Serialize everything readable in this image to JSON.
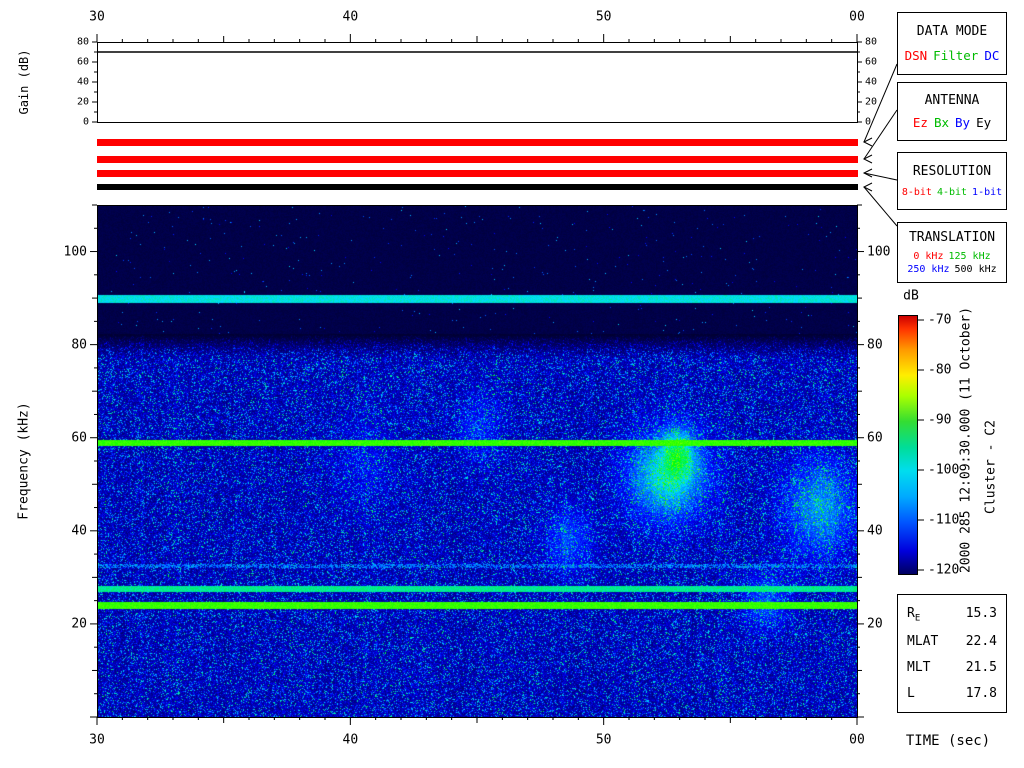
{
  "labels": {
    "gain_ylabel": "Gain (dB)",
    "freq_ylabel": "Frequency (kHz)",
    "time_xlabel": "TIME (sec)",
    "colorbar_title": "dB",
    "side_datetime": "2000 285 12:09:30.000 (11 October)",
    "side_spacecraft": "Cluster - C2"
  },
  "legend_boxes": [
    {
      "title": "DATA MODE",
      "items": [
        {
          "label": "DSN",
          "color": "#ff0000"
        },
        {
          "label": "Filter",
          "color": "#00bb00"
        },
        {
          "label": "DC",
          "color": "#0000ff"
        }
      ]
    },
    {
      "title": "ANTENNA",
      "items": [
        {
          "label": "Ez",
          "color": "#ff0000"
        },
        {
          "label": "Bx",
          "color": "#00bb00"
        },
        {
          "label": "By",
          "color": "#0000ff"
        },
        {
          "label": "Ey",
          "color": "#000000"
        }
      ]
    },
    {
      "title": "RESOLUTION",
      "items": [
        {
          "label": "8-bit",
          "color": "#ff0000"
        },
        {
          "label": "4-bit",
          "color": "#00bb00"
        },
        {
          "label": "1-bit",
          "color": "#0000ff"
        }
      ]
    },
    {
      "title": "TRANSLATION",
      "items": [
        {
          "label": "0 kHz",
          "color": "#ff0000"
        },
        {
          "label": "125 kHz",
          "color": "#00bb00"
        },
        {
          "label": "250 kHz",
          "color": "#0000ff"
        },
        {
          "label": "500 kHz",
          "color": "#000000"
        }
      ]
    }
  ],
  "colorbar": {
    "unit": "dB",
    "max_db": -70,
    "min_db": -120,
    "ticks": [
      "-70",
      "-80",
      "-90",
      "-100",
      "-110",
      "-120"
    ]
  },
  "ephemeris": {
    "rows": [
      {
        "label": "R",
        "sub": "E",
        "value": "15.3"
      },
      {
        "label": "MLAT",
        "sub": "",
        "value": "22.4"
      },
      {
        "label": "MLT",
        "sub": "",
        "value": "21.5"
      },
      {
        "label": "L",
        "sub": "",
        "value": "17.8"
      }
    ]
  },
  "chart_data": {
    "type": "heatmap",
    "title": "Cluster - C2 wideband (WBD) spectrogram, 2000 day 285 12:09:30.000 (11 October)",
    "x_axis": {
      "label": "TIME (sec)",
      "range_sec": [
        30,
        60
      ],
      "ticks": [
        {
          "sec": 30,
          "label": "30"
        },
        {
          "sec": 40,
          "label": "40"
        },
        {
          "sec": 50,
          "label": "50"
        },
        {
          "sec": 60,
          "label": "00"
        }
      ]
    },
    "gain_panel": {
      "ylabel": "Gain (dB)",
      "ylim": [
        0,
        80
      ],
      "yticks": [
        0,
        20,
        40,
        60,
        80
      ],
      "gain_db": 70
    },
    "spectrogram": {
      "ylabel": "Frequency (kHz)",
      "ylim_khz": [
        0,
        110
      ],
      "yticks_khz": [
        20,
        40,
        60,
        80,
        100
      ],
      "intensity_range_db": [
        -120,
        -70
      ],
      "noise_band_top_khz": 82,
      "background": "broadband blue/cyan noise below 82 kHz, dark navy above",
      "emission_lines": [
        {
          "freq_khz": 90,
          "color": "cyan",
          "strength": "moderate"
        },
        {
          "freq_khz": 59,
          "color": "green",
          "strength": "strong"
        },
        {
          "freq_khz": 32.5,
          "color": "cyan",
          "strength": "faint"
        },
        {
          "freq_khz": 27.5,
          "color": "cyan-green",
          "strength": "moderate"
        },
        {
          "freq_khz": 24,
          "color": "green",
          "strength": "strong"
        }
      ],
      "enhancements": [
        {
          "t_sec": 52.5,
          "freq_khz": 52,
          "note": "bright diffuse patch"
        },
        {
          "t_sec": 58.5,
          "freq_khz": 45,
          "note": "bright patch near right edge"
        },
        {
          "t_sec": 48.5,
          "freq_khz": 38,
          "note": "faint diagonal feature"
        }
      ]
    },
    "status_bars": [
      {
        "name": "data-mode-bar",
        "color": "#ff0000"
      },
      {
        "name": "antenna-bar",
        "color": "#ff0000"
      },
      {
        "name": "resolution-bar",
        "color": "#ff0000"
      },
      {
        "name": "translation-bar",
        "color": "#000000"
      }
    ]
  }
}
